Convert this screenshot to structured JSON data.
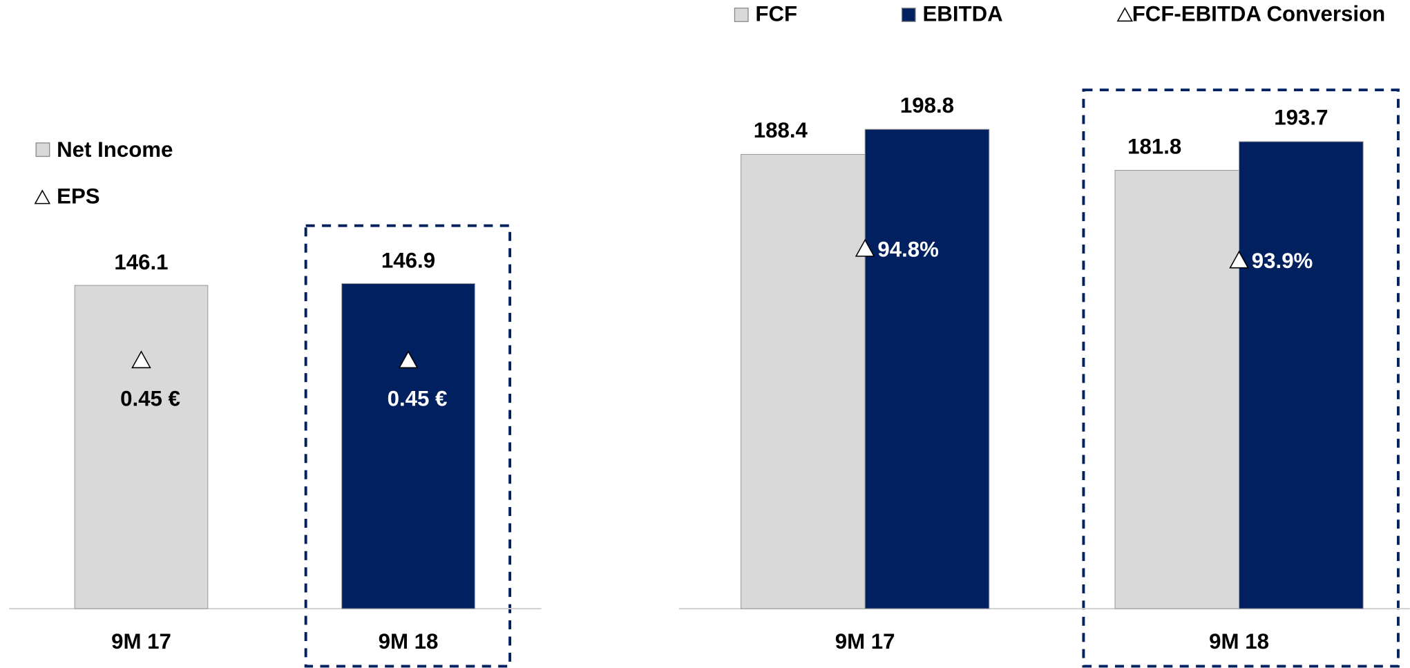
{
  "chart_data": [
    {
      "type": "bar",
      "categories": [
        "9M 17",
        "9M 18"
      ],
      "ylim": [
        0,
        180
      ],
      "series": [
        {
          "name": "Net Income",
          "color": "#d9d9d9",
          "colors": [
            "#d9d9d9",
            "#002060"
          ],
          "values": [
            146.1,
            146.9
          ]
        },
        {
          "name": "EPS",
          "values": [
            0.45,
            0.45
          ],
          "value_labels": [
            "0.45 €",
            "0.45 €"
          ]
        }
      ]
    },
    {
      "type": "grouped_bar",
      "categories": [
        "9M 17",
        "9M 18"
      ],
      "ylim": [
        0,
        220
      ],
      "y2lim": [
        67,
        108
      ],
      "series": [
        {
          "name": "FCF",
          "color": "#d9d9d9",
          "values": [
            188.4,
            181.8
          ]
        },
        {
          "name": "EBITDA",
          "color": "#002060",
          "values": [
            198.8,
            193.7
          ]
        },
        {
          "name": "FCF-EBITDA Conversion",
          "axis": "y2",
          "values": [
            94.8,
            93.9
          ],
          "value_labels": [
            "94.8%",
            "93.9%"
          ]
        }
      ]
    }
  ]
}
